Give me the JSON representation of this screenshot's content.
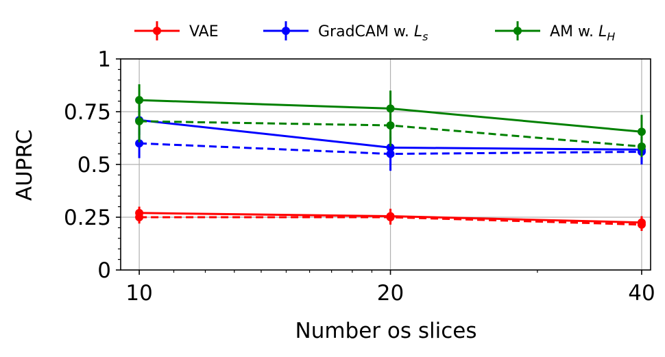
{
  "chart_data": {
    "type": "line",
    "title": "",
    "xlabel": "Number os slices",
    "ylabel": "AUPRC",
    "xscale": "log",
    "x": [
      10,
      20,
      40
    ],
    "xlim": [
      9.5,
      41
    ],
    "xticks": [
      10,
      20,
      40
    ],
    "xtick_labels": [
      "10",
      "20",
      "40"
    ],
    "ylim": [
      0,
      1
    ],
    "yticks": [
      0,
      0.25,
      0.5,
      0.75,
      1
    ],
    "ytick_labels": [
      "0",
      "0.25",
      "0.5",
      "0.75",
      "1"
    ],
    "grid": true,
    "legend_position": "top",
    "legend": [
      {
        "label": "VAE",
        "subscript": "",
        "color": "#ff0000"
      },
      {
        "label": "GradCAM w. L",
        "subscript": "s",
        "color": "#0000ff"
      },
      {
        "label": "AM w. L",
        "subscript": "H",
        "color": "#008000"
      }
    ],
    "series": [
      {
        "name": "VAE (solid)",
        "color": "#ff0000",
        "style": "solid",
        "values": [
          0.27,
          0.255,
          0.225
        ],
        "errors": [
          0.03,
          0.035,
          0.03
        ]
      },
      {
        "name": "VAE (dashed)",
        "color": "#ff0000",
        "style": "dashed",
        "values": [
          0.25,
          0.25,
          0.215
        ],
        "errors": [
          0.03,
          0.035,
          0.03
        ]
      },
      {
        "name": "GradCAM w. Ls (solid)",
        "color": "#0000ff",
        "style": "solid",
        "values": [
          0.71,
          0.58,
          0.57
        ],
        "errors": [
          0.07,
          0.08,
          0.06
        ]
      },
      {
        "name": "GradCAM w. Ls (dashed)",
        "color": "#0000ff",
        "style": "dashed",
        "values": [
          0.6,
          0.55,
          0.56
        ],
        "errors": [
          0.07,
          0.08,
          0.06
        ]
      },
      {
        "name": "AM w. LH (solid)",
        "color": "#008000",
        "style": "solid",
        "values": [
          0.805,
          0.765,
          0.655
        ],
        "errors": [
          0.075,
          0.085,
          0.08
        ]
      },
      {
        "name": "AM w. LH (dashed)",
        "color": "#008000",
        "style": "dashed",
        "values": [
          0.705,
          0.685,
          0.585
        ],
        "errors": [
          0.1,
          0.1,
          0.05
        ]
      }
    ]
  }
}
